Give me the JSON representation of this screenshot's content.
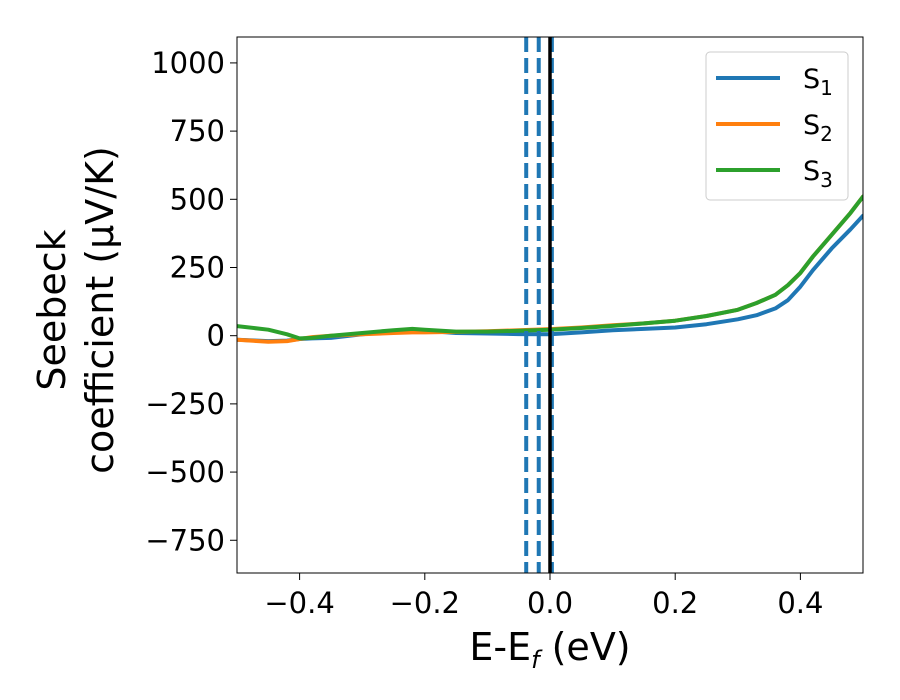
{
  "chart_data": {
    "type": "line",
    "xlabel": "E-E",
    "xlabel_sub": "f",
    "xlabel_unit": " (eV)",
    "ylabel_line1": "Seebeck",
    "ylabel_line2": "coefficient  (μV/K)",
    "xlim": [
      -0.5,
      0.5
    ],
    "ylim": [
      -870,
      1095
    ],
    "x_ticks": [
      -0.4,
      -0.2,
      0.0,
      0.2,
      0.4
    ],
    "x_tick_labels": [
      "−0.4",
      "−0.2",
      "0.0",
      "0.2",
      "0.4"
    ],
    "y_ticks": [
      1000,
      750,
      500,
      250,
      0,
      -250,
      -500,
      -750
    ],
    "y_tick_labels": [
      "1000",
      "750",
      "500",
      "250",
      "0",
      "−250",
      "−500",
      "−750"
    ],
    "legend_position": "top-right",
    "grid": false,
    "series": [
      {
        "name": "S",
        "sub": "1",
        "color": "#1f77b4",
        "x": [
          -0.5,
          -0.45,
          -0.42,
          -0.4,
          -0.38,
          -0.35,
          -0.3,
          -0.25,
          -0.22,
          -0.2,
          -0.15,
          -0.1,
          -0.05,
          0.0,
          0.05,
          0.1,
          0.15,
          0.2,
          0.25,
          0.3,
          0.33,
          0.36,
          0.38,
          0.4,
          0.42,
          0.45,
          0.48,
          0.5
        ],
        "y": [
          -15,
          -20,
          -18,
          -12,
          -10,
          -8,
          5,
          15,
          20,
          18,
          10,
          8,
          6,
          5,
          12,
          20,
          25,
          30,
          42,
          60,
          75,
          100,
          130,
          180,
          240,
          320,
          390,
          440
        ]
      },
      {
        "name": "S",
        "sub": "2",
        "color": "#ff7f0e",
        "x": [
          -0.5,
          -0.45,
          -0.42,
          -0.4,
          -0.38,
          -0.35,
          -0.3,
          -0.25,
          -0.22,
          -0.2,
          -0.15,
          -0.1,
          -0.05,
          0.0,
          0.05,
          0.1,
          0.15,
          0.2,
          0.25,
          0.3,
          0.33,
          0.36,
          0.38,
          0.4,
          0.42,
          0.45,
          0.48,
          0.5
        ],
        "y": [
          -15,
          -22,
          -20,
          -12,
          -5,
          0,
          5,
          10,
          12,
          12,
          14,
          16,
          20,
          24,
          30,
          38,
          45,
          55,
          72,
          95,
          120,
          150,
          185,
          230,
          290,
          370,
          450,
          510
        ]
      },
      {
        "name": "S",
        "sub": "3",
        "color": "#2ca02c",
        "x": [
          -0.5,
          -0.45,
          -0.42,
          -0.4,
          -0.38,
          -0.35,
          -0.3,
          -0.25,
          -0.22,
          -0.2,
          -0.15,
          -0.1,
          -0.05,
          0.0,
          0.05,
          0.1,
          0.15,
          0.2,
          0.25,
          0.3,
          0.33,
          0.36,
          0.38,
          0.4,
          0.42,
          0.45,
          0.48,
          0.5
        ],
        "y": [
          35,
          22,
          5,
          -10,
          -8,
          0,
          10,
          20,
          25,
          22,
          15,
          15,
          18,
          22,
          28,
          36,
          45,
          55,
          72,
          95,
          120,
          150,
          185,
          230,
          290,
          370,
          450,
          510
        ]
      }
    ],
    "vlines": [
      {
        "x": -0.038,
        "color": "#1f77b4",
        "style": "dashed"
      },
      {
        "x": -0.018,
        "color": "#1f77b4",
        "style": "dashed"
      },
      {
        "x": 0.003,
        "color": "#1f77b4",
        "style": "dashed"
      },
      {
        "x": 0.0,
        "color": "#000000",
        "style": "solid"
      }
    ]
  }
}
